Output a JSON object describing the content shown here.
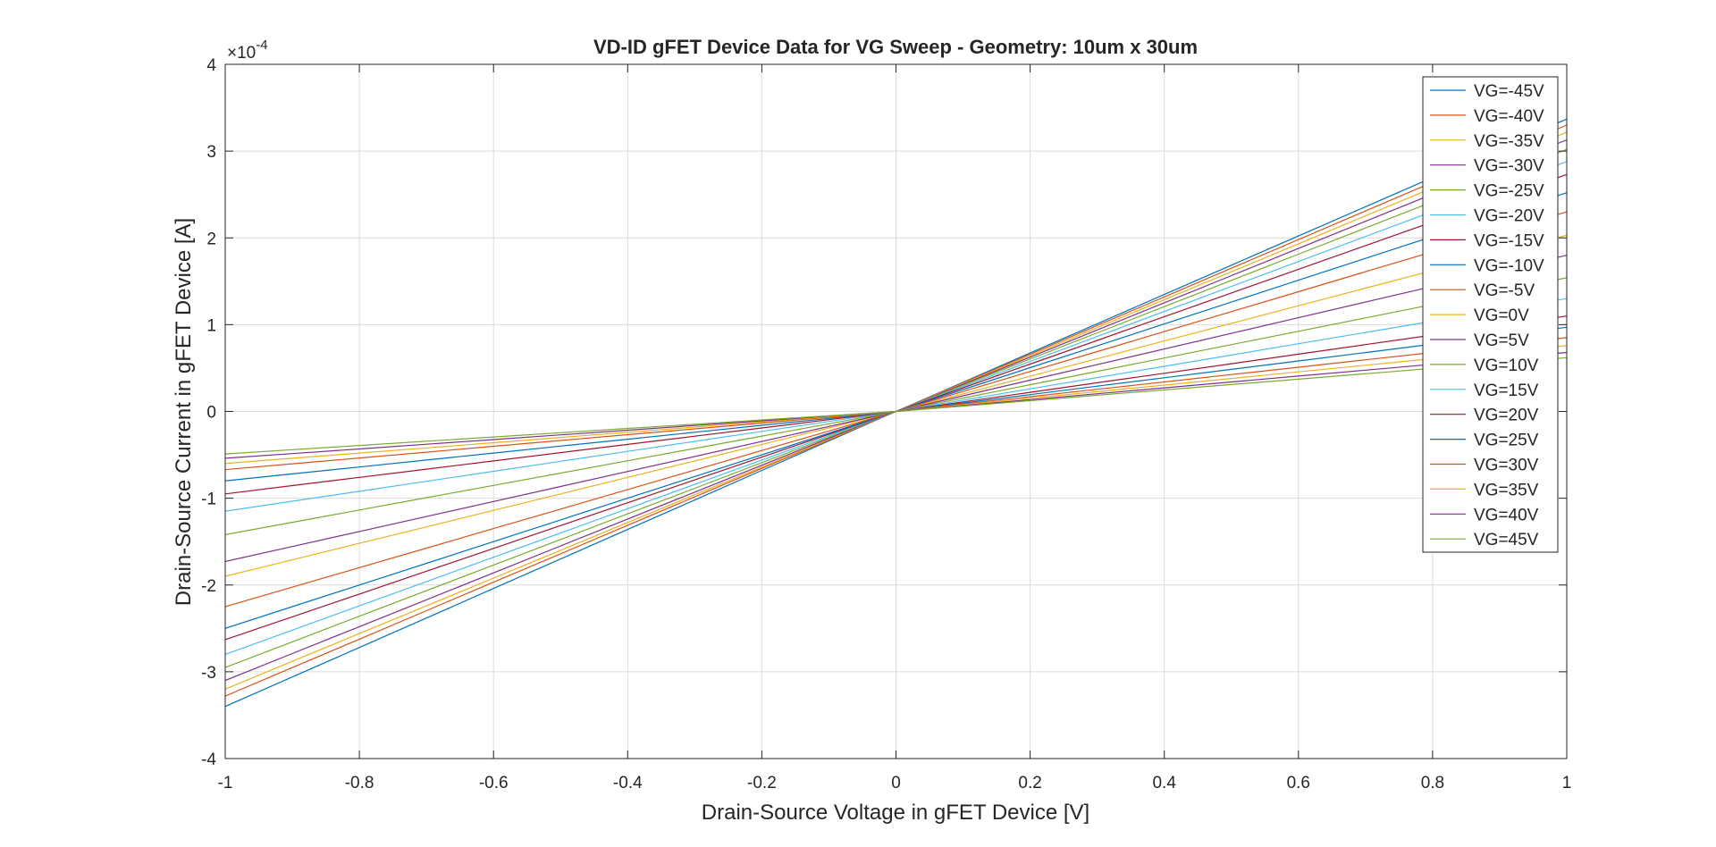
{
  "chart_data": {
    "type": "line",
    "title": "VD-ID gFET Device Data for VG Sweep - Geometry: 10um x 30um",
    "xlabel": "Drain-Source Voltage in gFET Device [V]",
    "ylabel": "Drain-Source Current in gFET Device [A]",
    "y_exponent_label": "×10",
    "y_exponent_power": "-4",
    "xlim": [
      -1,
      1
    ],
    "ylim": [
      -4,
      4
    ],
    "y_scale_factor": 0.0001,
    "xticks": [
      -1,
      -0.8,
      -0.6,
      -0.4,
      -0.2,
      0,
      0.2,
      0.4,
      0.6,
      0.8,
      1
    ],
    "xtick_labels": [
      "-1",
      "-0.8",
      "-0.6",
      "-0.4",
      "-0.2",
      "0",
      "0.2",
      "0.4",
      "0.6",
      "0.8",
      "1"
    ],
    "yticks": [
      -4,
      -3,
      -2,
      -1,
      0,
      1,
      2,
      3,
      4
    ],
    "ytick_labels": [
      "-4",
      "-3",
      "-2",
      "-1",
      "0",
      "1",
      "2",
      "3",
      "4"
    ],
    "grid": true,
    "legend_position": "top-right",
    "x": [
      -1,
      -0.9,
      -0.8,
      -0.7,
      -0.6,
      -0.5,
      -0.4,
      -0.3,
      -0.2,
      -0.1,
      0,
      0.1,
      0.2,
      0.3,
      0.4,
      0.5,
      0.6,
      0.7,
      0.8,
      0.9,
      1
    ],
    "series": [
      {
        "name": "VG=-45V",
        "color": "#0072BD",
        "neg_end": 3.4,
        "pos_end": 3.37
      },
      {
        "name": "VG=-40V",
        "color": "#D95319",
        "neg_end": 3.28,
        "pos_end": 3.3
      },
      {
        "name": "VG=-35V",
        "color": "#EDB120",
        "neg_end": 3.2,
        "pos_end": 3.22
      },
      {
        "name": "VG=-30V",
        "color": "#7E2F8E",
        "neg_end": 3.1,
        "pos_end": 3.13
      },
      {
        "name": "VG=-25V",
        "color": "#77AC30",
        "neg_end": 2.95,
        "pos_end": 3.02
      },
      {
        "name": "VG=-20V",
        "color": "#4DBEEE",
        "neg_end": 2.8,
        "pos_end": 2.88
      },
      {
        "name": "VG=-15V",
        "color": "#A2142F",
        "neg_end": 2.63,
        "pos_end": 2.73
      },
      {
        "name": "VG=-10V",
        "color": "#0072BD",
        "neg_end": 2.5,
        "pos_end": 2.52
      },
      {
        "name": "VG=-5V",
        "color": "#D95319",
        "neg_end": 2.25,
        "pos_end": 2.3
      },
      {
        "name": "VG=0V",
        "color": "#EDB120",
        "neg_end": 1.9,
        "pos_end": 2.03
      },
      {
        "name": "VG=5V",
        "color": "#7E2F8E",
        "neg_end": 1.73,
        "pos_end": 1.8
      },
      {
        "name": "VG=10V",
        "color": "#77AC30",
        "neg_end": 1.42,
        "pos_end": 1.54
      },
      {
        "name": "VG=15V",
        "color": "#4DBEEE",
        "neg_end": 1.15,
        "pos_end": 1.3
      },
      {
        "name": "VG=20V",
        "color": "#A2142F",
        "neg_end": 0.95,
        "pos_end": 1.1
      },
      {
        "name": "VG=25V",
        "color": "#0072BD",
        "neg_end": 0.8,
        "pos_end": 0.97
      },
      {
        "name": "VG=30V",
        "color": "#D95319",
        "neg_end": 0.67,
        "pos_end": 0.85
      },
      {
        "name": "VG=35V",
        "color": "#EDB120",
        "neg_end": 0.6,
        "pos_end": 0.76
      },
      {
        "name": "VG=40V",
        "color": "#7E2F8E",
        "neg_end": 0.54,
        "pos_end": 0.68
      },
      {
        "name": "VG=45V",
        "color": "#77AC30",
        "neg_end": 0.49,
        "pos_end": 0.62
      }
    ]
  }
}
